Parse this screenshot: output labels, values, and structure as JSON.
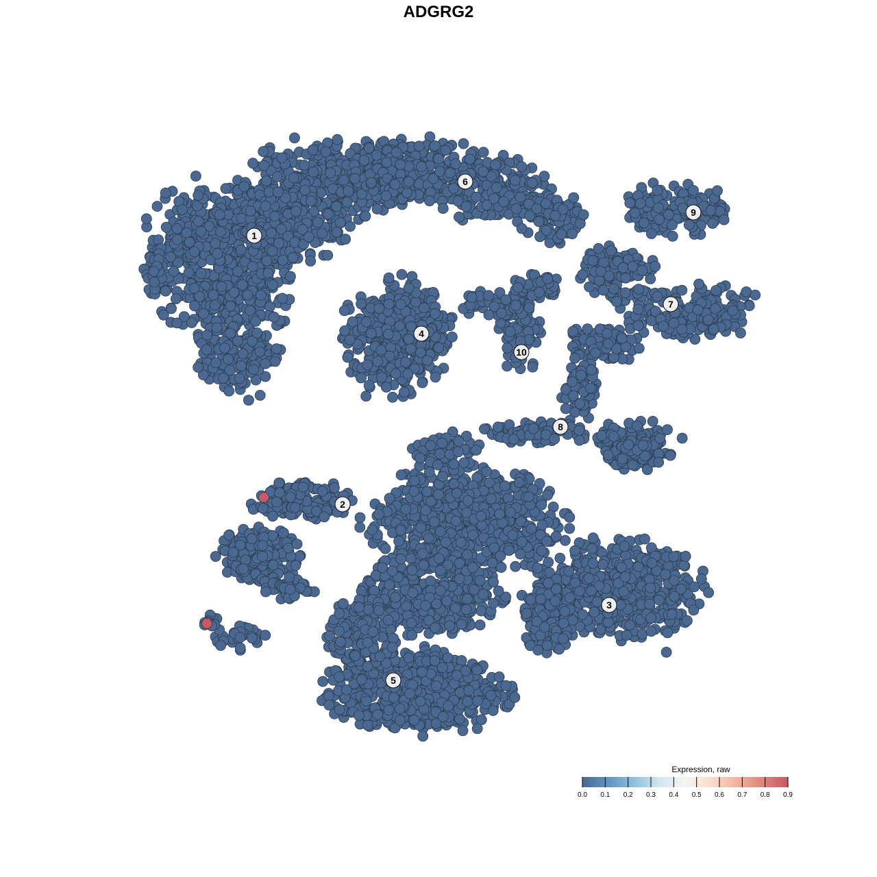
{
  "chart_data": {
    "type": "scatter",
    "title": "ADGRG2",
    "xlabel": "",
    "ylabel": "",
    "axes_visible": false,
    "grid": false,
    "point_color_default": "#4a6890",
    "point_stroke": "#2b3a4c",
    "cluster_labels": [
      {
        "label": "1",
        "x": -26.9,
        "y": 29.6
      },
      {
        "label": "2",
        "x": -14.0,
        "y": -9.6
      },
      {
        "label": "3",
        "x": 24.9,
        "y": -24.3
      },
      {
        "label": "4",
        "x": -2.5,
        "y": 15.3
      },
      {
        "label": "5",
        "x": -6.6,
        "y": -35.3
      },
      {
        "label": "6",
        "x": 3.9,
        "y": 37.5
      },
      {
        "label": "7",
        "x": 33.9,
        "y": 19.6
      },
      {
        "label": "8",
        "x": 17.8,
        "y": 1.7
      },
      {
        "label": "9",
        "x": 37.2,
        "y": 33.0
      },
      {
        "label": "10",
        "x": 12.1,
        "y": 12.6
      }
    ],
    "expressing_points": [
      {
        "x": -25.5,
        "y": -8.6,
        "value": 0.9
      },
      {
        "x": -33.8,
        "y": -27.0,
        "value": 0.9
      }
    ],
    "other_points_value": 0.0,
    "colorbar": {
      "title": "Expression, raw",
      "min": 0.0,
      "max": 0.9,
      "ticks": [
        "0.0",
        "0.1",
        "0.2",
        "0.3",
        "0.4",
        "0.5",
        "0.6",
        "0.7",
        "0.8",
        "0.9"
      ],
      "colors": [
        "#4a6a93",
        "#5f93c2",
        "#8fc0dc",
        "#d3e7f0",
        "#f5f5f5",
        "#fbdccd",
        "#f1b49d",
        "#de8578",
        "#c75865"
      ],
      "placement": "bottom-right"
    }
  }
}
